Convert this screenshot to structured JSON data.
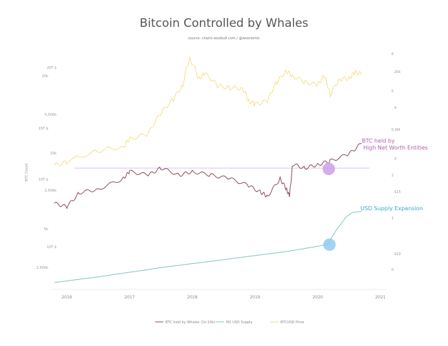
{
  "chart_data": {
    "type": "line",
    "title": "Bitcoin Controlled by Whales",
    "subtitle": "source: charts.woobull.com / @woonomic",
    "ylabel": "BTC Count",
    "x_ticks": [
      "2016",
      "2017",
      "2018",
      "2019",
      "2020",
      "2021"
    ],
    "left_ticks": [
      "20T $",
      "20k",
      "5,000k",
      "15T $",
      "10k",
      "10T $",
      "2,500k",
      "5k",
      "10T $",
      "2,000k"
    ],
    "right_ticks": [
      "6",
      "20k",
      "5",
      "4",
      "5.5M",
      "3",
      "2",
      "$15",
      "1",
      "$10",
      "0"
    ],
    "grid": false,
    "legend_position": "bottom",
    "series": [
      {
        "name": "BTC held by Whales (1k-10k)",
        "color": "#8a4a5a",
        "x": [
          2015.8,
          2016.0,
          2016.2,
          2016.5,
          2016.9,
          2017.0,
          2017.3,
          2017.5,
          2017.8,
          2018.0,
          2018.3,
          2018.6,
          2018.9,
          2019.1,
          2019.2,
          2019.4,
          2019.5,
          2019.55,
          2019.6,
          2019.8,
          2020.0,
          2020.2,
          2020.5,
          2020.7
        ],
        "values": [
          4.2,
          4.1,
          4.5,
          4.6,
          4.9,
          5.1,
          5.0,
          5.2,
          5.0,
          5.1,
          5.0,
          4.9,
          4.7,
          4.5,
          4.4,
          4.9,
          4.6,
          4.4,
          5.3,
          5.2,
          5.3,
          5.4,
          5.6,
          5.9
        ]
      },
      {
        "name": "M2 USD Supply",
        "color": "#7fc4c0",
        "x": [
          2015.8,
          2016.5,
          2017.5,
          2018.5,
          2019.5,
          2020.15,
          2020.3,
          2020.45,
          2020.55,
          2020.7
        ],
        "values": [
          12.2,
          12.7,
          13.5,
          14.2,
          14.9,
          15.5,
          16.8,
          17.9,
          18.3,
          18.4
        ]
      },
      {
        "name": "BTCUSD Price",
        "color": "#f2dc7c",
        "x": [
          2015.8,
          2016.0,
          2016.5,
          2016.9,
          2017.0,
          2017.3,
          2017.5,
          2017.7,
          2017.85,
          2017.96,
          2018.1,
          2018.2,
          2018.4,
          2018.6,
          2018.8,
          2018.9,
          2019.0,
          2019.2,
          2019.35,
          2019.5,
          2019.6,
          2019.8,
          2020.0,
          2020.1,
          2020.2,
          2020.35,
          2020.5,
          2020.6,
          2020.7
        ],
        "values": [
          380,
          430,
          650,
          750,
          1000,
          1200,
          2500,
          4300,
          7000,
          19000,
          9000,
          11000,
          7000,
          6500,
          6400,
          4000,
          3600,
          4000,
          8000,
          12000,
          10000,
          8000,
          7200,
          10000,
          5000,
          9000,
          9200,
          11500,
          10800
        ]
      }
    ],
    "annotations": [
      {
        "text": [
          "BTC held by",
          "High Net Worth Entities"
        ],
        "color": "#b05fb0",
        "highlight": "#c79be6"
      },
      {
        "text": [
          "USD Supply Expansion"
        ],
        "color": "#3aa8c4",
        "highlight": "#8cc8ec"
      }
    ]
  }
}
